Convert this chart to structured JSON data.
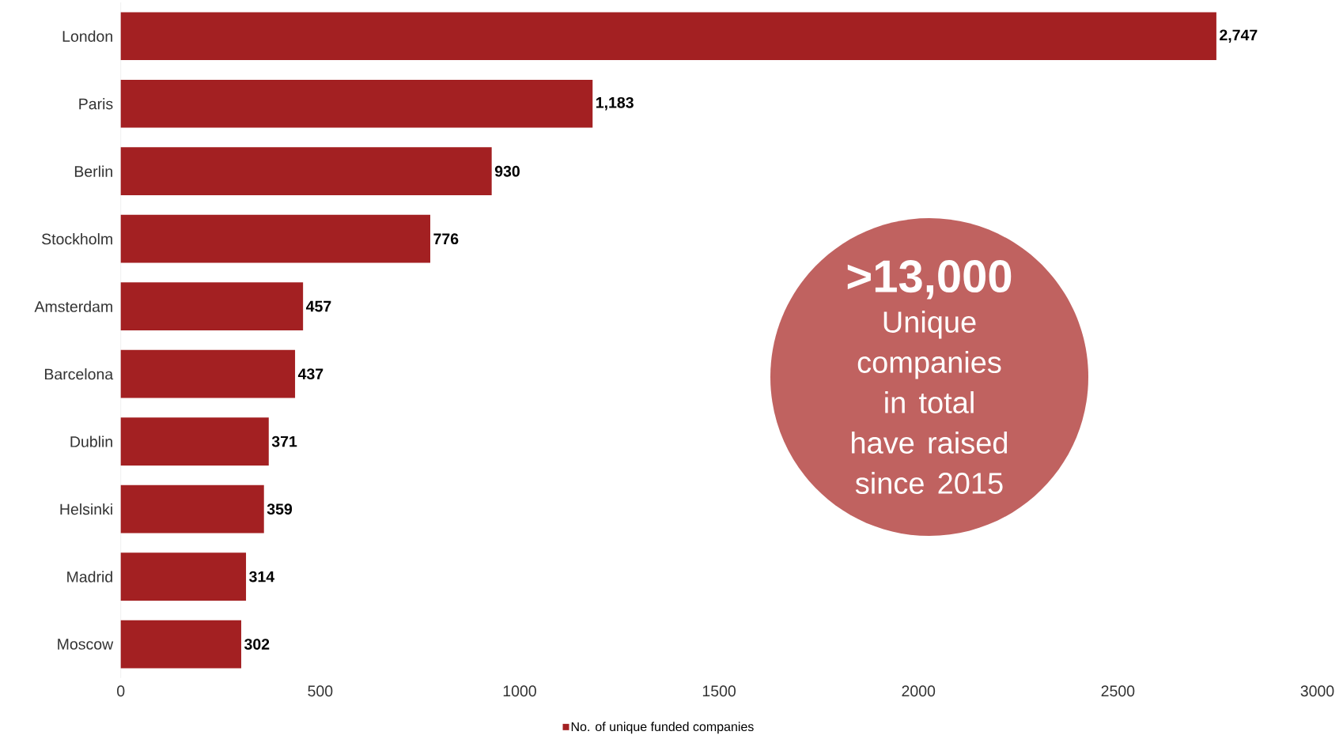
{
  "chart_data": {
    "type": "bar",
    "orientation": "horizontal",
    "categories": [
      "London",
      "Paris",
      "Berlin",
      "Stockholm",
      "Amsterdam",
      "Barcelona",
      "Dublin",
      "Helsinki",
      "Madrid",
      "Moscow"
    ],
    "series": [
      {
        "name": "No. of unique funded companies",
        "color": "#a32022",
        "values": [
          2747,
          1183,
          930,
          776,
          457,
          437,
          371,
          359,
          314,
          302
        ],
        "value_labels": [
          "2,747",
          "1,183",
          "930",
          "776",
          "457",
          "437",
          "371",
          "359",
          "314",
          "302"
        ]
      }
    ],
    "xlim": [
      0,
      3000
    ],
    "xticks": [
      0,
      500,
      1000,
      1500,
      2000,
      2500,
      3000
    ],
    "grid": false,
    "legend": "bottom",
    "annotations": [
      ">13,000",
      "Unique companies in total have raised since 2015"
    ]
  }
}
